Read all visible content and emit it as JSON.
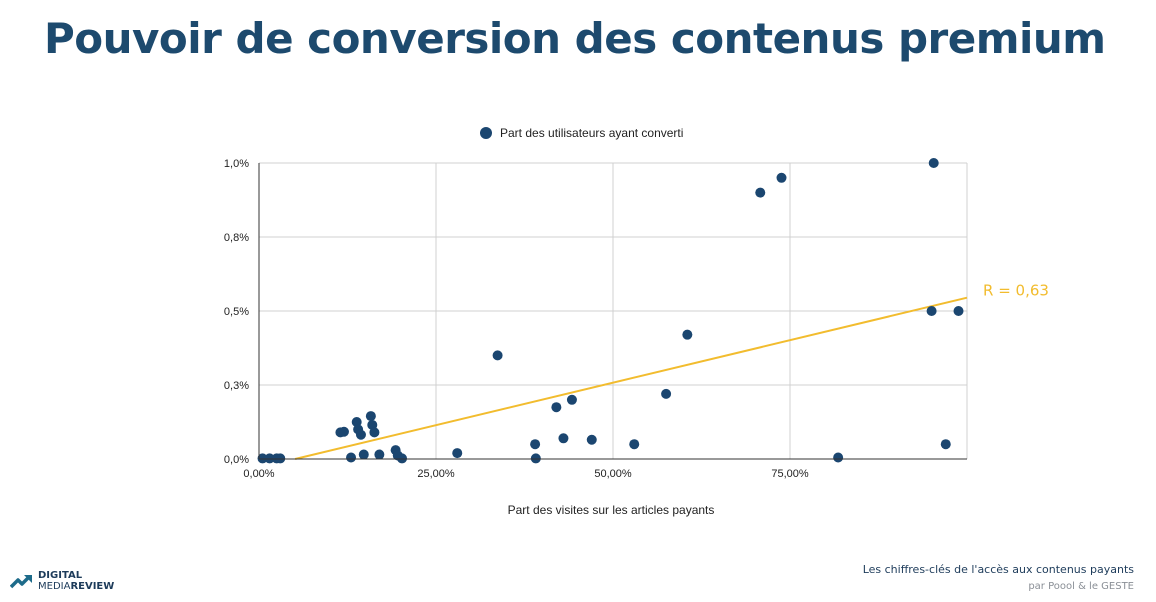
{
  "slide": {
    "title": "Pouvoir de conversion des contenus premium",
    "footer_title": "Les chiffres-clés de l'accès aux contenus payants",
    "footer_subtitle": "par Poool & le GESTE"
  },
  "logo": {
    "line1": "DIGITAL",
    "line2_a": "MEDIA",
    "line2_b": "REVIEW"
  },
  "colors": {
    "title": "#1d4a6e",
    "points": "#1b4670",
    "trendline": "#f2bc2e",
    "grid": "#d0d0d0"
  },
  "chart_data": {
    "type": "scatter",
    "xlabel": "Part des visites sur les articles payants",
    "ylabel": "",
    "xlim": [
      0,
      100
    ],
    "ylim": [
      0,
      1.0
    ],
    "x_ticks": [
      0,
      25,
      50,
      75
    ],
    "x_tick_labels": [
      "0,00%",
      "25,00%",
      "50,00%",
      "75,00%"
    ],
    "y_ticks": [
      0,
      0.25,
      0.5,
      0.75,
      1.0
    ],
    "y_tick_labels": [
      "0,0%",
      "0,3%",
      "0,5%",
      "0,8%",
      "1,0%"
    ],
    "grid": true,
    "legend_position": "top-center",
    "series": [
      {
        "name": "Part des utilisateurs ayant converti",
        "x": [
          0.5,
          1.5,
          2.5,
          3.0,
          11.5,
          12,
          13,
          13.8,
          14,
          14.4,
          14.8,
          15.8,
          16,
          16.3,
          17,
          19.3,
          19.6,
          20.2,
          28,
          33.7,
          39,
          39.1,
          42,
          43,
          44.2,
          47,
          53,
          57.5,
          60.5,
          70.8,
          73.8,
          81.8,
          95,
          95.3,
          97,
          98.8
        ],
        "y": [
          0.002,
          0.002,
          0.002,
          0.002,
          0.09,
          0.092,
          0.005,
          0.125,
          0.1,
          0.082,
          0.015,
          0.145,
          0.115,
          0.09,
          0.015,
          0.03,
          0.012,
          0.002,
          0.02,
          0.35,
          0.05,
          0.002,
          0.175,
          0.07,
          0.2,
          0.065,
          0.05,
          0.22,
          0.42,
          0.9,
          0.95,
          0.005,
          0.5,
          1.0,
          0.05,
          0.5
        ]
      }
    ],
    "trendline": {
      "label": "R = 0,63",
      "x": [
        5.1,
        100
      ],
      "y": [
        0.0,
        0.545
      ]
    }
  }
}
